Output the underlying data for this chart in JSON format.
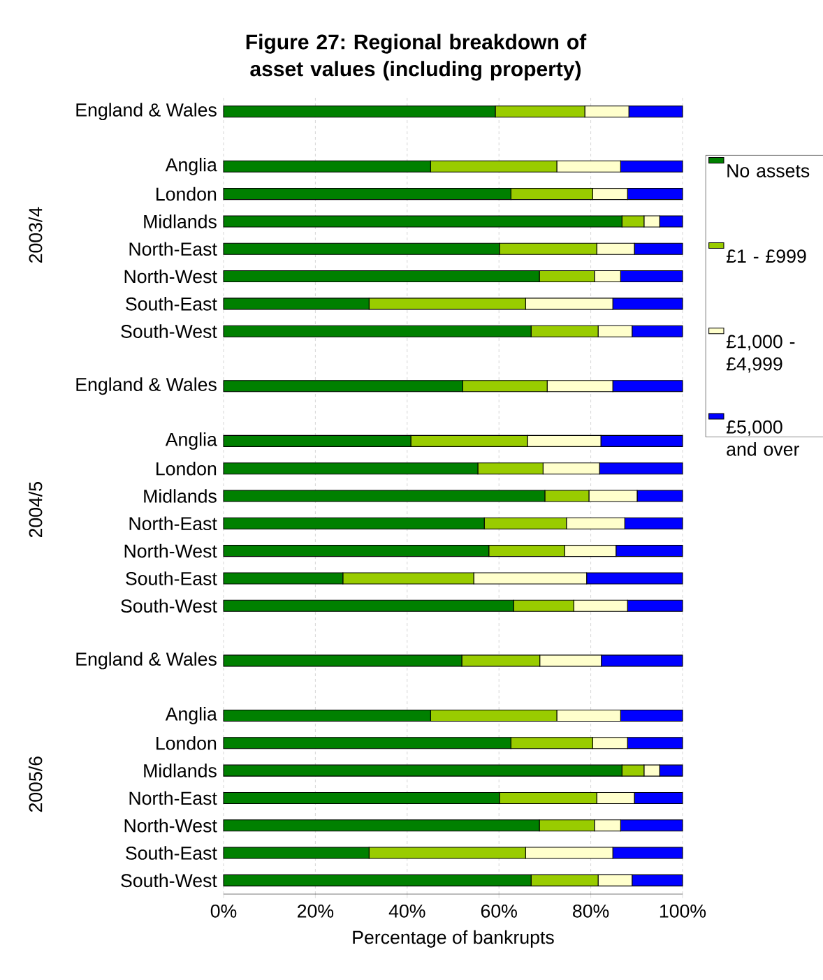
{
  "chart_data": {
    "type": "bar",
    "orientation": "horizontal",
    "stacked": true,
    "title": "Figure 27: Regional breakdown of asset values (including property)",
    "xlabel": "Percentage of bankrupts",
    "categories": [
      "England & Wales",
      null,
      "Anglia",
      "London",
      "Midlands",
      "North-East",
      "North-West",
      "South-East",
      "South-West",
      null,
      "England & Wales",
      null,
      "Anglia",
      "London",
      "Midlands",
      "North-East",
      "North-West",
      "South-East",
      "South-West",
      null,
      "England & Wales",
      null,
      "Anglia",
      "London",
      "Midlands",
      "North-East",
      "North-West",
      "South-East",
      "South-West"
    ],
    "series": [
      {
        "name": "No assets",
        "color": "#008000",
        "values": [
          59.2,
          null,
          45.1,
          62.6,
          86.8,
          60.1,
          68.8,
          31.7,
          67.0,
          null,
          52.1,
          null,
          40.8,
          55.4,
          70.0,
          56.8,
          57.8,
          26.0,
          63.2,
          null,
          51.9,
          null,
          45.1,
          62.6,
          86.8,
          60.1,
          68.8,
          31.7,
          67.0
        ]
      },
      {
        "name": "£1 - £999",
        "color": "#99cc00",
        "values": [
          19.5,
          null,
          27.5,
          17.8,
          4.8,
          21.2,
          12.0,
          34.1,
          14.6,
          null,
          18.4,
          null,
          25.4,
          14.2,
          9.6,
          17.9,
          16.5,
          28.5,
          13.1,
          null,
          17.0,
          null,
          27.5,
          17.8,
          4.8,
          21.2,
          12.0,
          34.1,
          14.6
        ]
      },
      {
        "name": "£1,000 - £4,999",
        "color": "#ffffcc",
        "values": [
          9.6,
          null,
          13.9,
          7.6,
          3.4,
          8.2,
          5.7,
          19.0,
          7.4,
          null,
          14.3,
          null,
          16.0,
          12.3,
          10.5,
          12.7,
          11.2,
          24.6,
          11.7,
          null,
          13.4,
          null,
          13.9,
          7.6,
          3.4,
          8.2,
          5.7,
          19.0,
          7.4
        ]
      },
      {
        "name": "£5,000 and over",
        "color": "#0000ff",
        "values": [
          11.7,
          null,
          13.5,
          12.0,
          5.0,
          10.5,
          13.5,
          15.2,
          11.0,
          null,
          15.2,
          null,
          17.8,
          18.1,
          9.9,
          12.6,
          14.5,
          20.9,
          12.0,
          null,
          17.7,
          null,
          13.5,
          12.0,
          5.0,
          10.5,
          13.5,
          15.2,
          11.0
        ]
      }
    ],
    "xlim": [
      0,
      100
    ],
    "xticks": [
      {
        "value": 0,
        "label": "0%"
      },
      {
        "value": 20,
        "label": "20%"
      },
      {
        "value": 40,
        "label": "40%"
      },
      {
        "value": 60,
        "label": "60%"
      },
      {
        "value": 80,
        "label": "80%"
      },
      {
        "value": 100,
        "label": "100%"
      }
    ],
    "grid": "x",
    "legend": "right",
    "annotations": [
      "2003/4",
      "2004/5",
      "2005/6"
    ]
  }
}
